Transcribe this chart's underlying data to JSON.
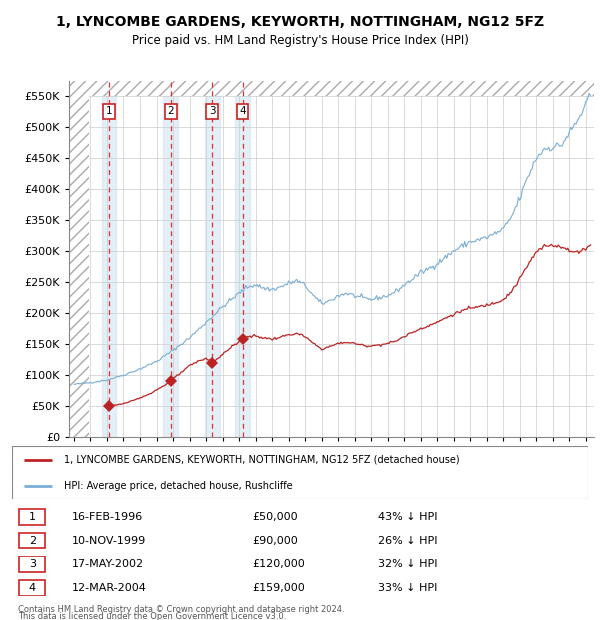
{
  "title": "1, LYNCOMBE GARDENS, KEYWORTH, NOTTINGHAM, NG12 5FZ",
  "subtitle": "Price paid vs. HM Land Registry's House Price Index (HPI)",
  "transactions": [
    {
      "num": 1,
      "date": "16-FEB-1996",
      "date_x": 1996.12,
      "price": 50000,
      "pct": "43%",
      "dir": "↓"
    },
    {
      "num": 2,
      "date": "10-NOV-1999",
      "date_x": 1999.86,
      "price": 90000,
      "pct": "26%",
      "dir": "↓"
    },
    {
      "num": 3,
      "date": "17-MAY-2002",
      "date_x": 2002.38,
      "price": 120000,
      "pct": "32%",
      "dir": "↓"
    },
    {
      "num": 4,
      "date": "12-MAR-2004",
      "date_x": 2004.21,
      "price": 159000,
      "pct": "33%",
      "dir": "↓"
    }
  ],
  "hpi_color": "#7aadd4",
  "price_color": "#bb2222",
  "marker_color": "#bb2222",
  "label_house": "1, LYNCOMBE GARDENS, KEYWORTH, NOTTINGHAM, NG12 5FZ (detached house)",
  "label_hpi": "HPI: Average price, detached house, Rushcliffe",
  "footer1": "Contains HM Land Registry data © Crown copyright and database right 2024.",
  "footer2": "This data is licensed under the Open Government Licence v3.0.",
  "ylim_max": 575000,
  "ytick_max": 550000,
  "xmin": 1993.7,
  "xmax": 2025.5
}
